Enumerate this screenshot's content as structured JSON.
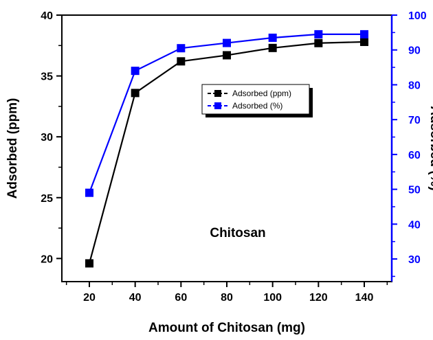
{
  "chart_data": {
    "type": "line",
    "xlabel": "Amount of Chitosan (mg)",
    "ylabel": "Adsorbed (ppm)",
    "y2label": "Adsorbed (%)",
    "x": [
      20,
      40,
      60,
      80,
      100,
      120,
      140
    ],
    "xticks": [
      "20",
      "40",
      "60",
      "80",
      "100",
      "120",
      "140"
    ],
    "yticks": [
      "20",
      "25",
      "30",
      "35",
      "40"
    ],
    "y2ticks": [
      "30",
      "40",
      "50",
      "60",
      "70",
      "80",
      "90",
      "100"
    ],
    "xlim": [
      8,
      152
    ],
    "ylim": [
      18.1,
      40
    ],
    "y2lim": [
      23.5,
      100
    ],
    "annotation": "Chitosan",
    "legend_position": "center",
    "series": [
      {
        "name": "Adsorbed (ppm)",
        "axis": "left",
        "color": "#000000",
        "marker": "square",
        "values": [
          19.6,
          33.6,
          36.2,
          36.7,
          37.3,
          37.7,
          37.8
        ]
      },
      {
        "name": "Adsorbed (%)",
        "axis": "right",
        "color": "#0000ff",
        "marker": "square",
        "values": [
          49,
          84,
          90.5,
          92,
          93.5,
          94.5,
          94.5
        ]
      }
    ]
  }
}
